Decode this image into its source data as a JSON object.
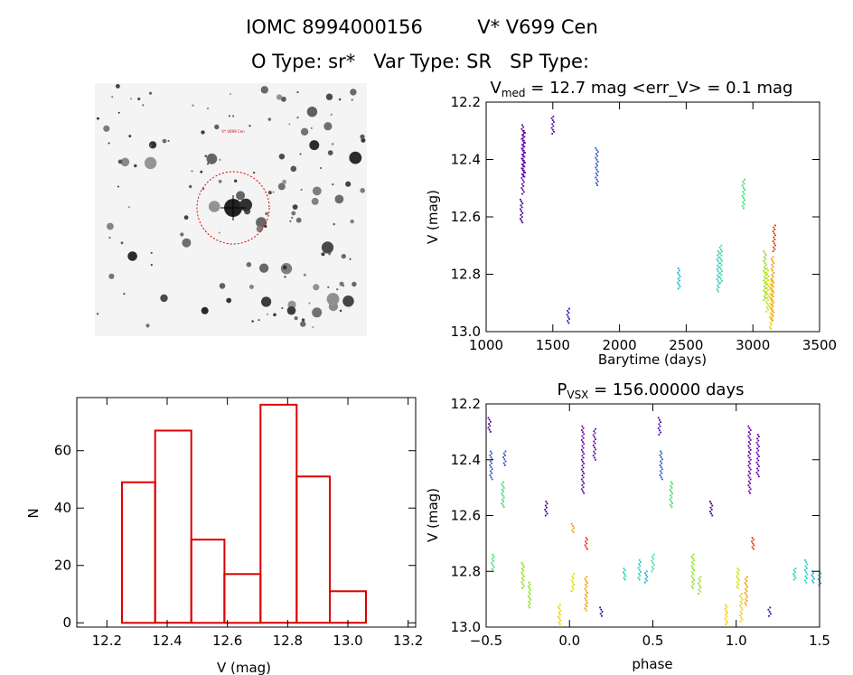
{
  "header": {
    "line1_id": "IOMC 8994000156",
    "line1_name": "V* V699 Cen",
    "line2": "O Type: sr*   Var Type: SR   SP Type:"
  },
  "colors": {
    "histogram": "#dd0000",
    "finder_circle": "#dd0000",
    "finder_bg": "#f4f4f4",
    "finder_star": "#222222"
  },
  "finder": {
    "label_top": "V* V699 Cen"
  },
  "chart_data": [
    {
      "type": "scatter",
      "id": "lightcurve",
      "title_prefix": "V",
      "title_sub": "med",
      "title_rest": " = 12.7 mag <err_V> = 0.1 mag",
      "xlabel": "Barytime (days)",
      "ylabel": "V (mag)",
      "xlim": [
        1000,
        3500
      ],
      "ylim": [
        13.0,
        12.2
      ],
      "y_inverted": true,
      "xticks": [
        1000,
        1500,
        2000,
        2500,
        3000,
        3500
      ],
      "yticks": [
        "12.2",
        "12.4",
        "12.6",
        "12.8",
        "13.0"
      ],
      "groups": [
        {
          "x": 1265,
          "ymin": 12.54,
          "ymax": 12.62,
          "color": "#440088"
        },
        {
          "x": 1275,
          "ymin": 12.28,
          "ymax": 12.52,
          "color": "#550099"
        },
        {
          "x": 1283,
          "ymin": 12.3,
          "ymax": 12.46,
          "color": "#6600aa"
        },
        {
          "x": 1500,
          "ymin": 12.25,
          "ymax": 12.31,
          "color": "#5500aa"
        },
        {
          "x": 1615,
          "ymin": 12.92,
          "ymax": 12.97,
          "color": "#3300aa"
        },
        {
          "x": 1830,
          "ymin": 12.36,
          "ymax": 12.49,
          "color": "#2255cc"
        },
        {
          "x": 2445,
          "ymin": 12.78,
          "ymax": 12.85,
          "color": "#22aacc"
        },
        {
          "x": 2740,
          "ymin": 12.72,
          "ymax": 12.86,
          "color": "#22ccbb"
        },
        {
          "x": 2760,
          "ymin": 12.7,
          "ymax": 12.83,
          "color": "#33ddaa"
        },
        {
          "x": 2930,
          "ymin": 12.47,
          "ymax": 12.57,
          "color": "#33dd66"
        },
        {
          "x": 3090,
          "ymin": 12.72,
          "ymax": 12.89,
          "color": "#88dd22"
        },
        {
          "x": 3110,
          "ymin": 12.78,
          "ymax": 12.93,
          "color": "#ccdd00"
        },
        {
          "x": 3135,
          "ymin": 12.82,
          "ymax": 12.99,
          "color": "#eecc00"
        },
        {
          "x": 3148,
          "ymin": 12.74,
          "ymax": 12.96,
          "color": "#ee9900"
        },
        {
          "x": 3160,
          "ymin": 12.63,
          "ymax": 12.72,
          "color": "#dd3300"
        }
      ]
    },
    {
      "type": "bar",
      "id": "histogram",
      "xlabel": "V (mag)",
      "ylabel": "N",
      "xlim": [
        12.1,
        13.225
      ],
      "ylim": [
        -1.5,
        78.5
      ],
      "xticks": [
        "12.2",
        "12.4",
        "12.6",
        "12.8",
        "13.0",
        "13.2"
      ],
      "yticks": [
        "0",
        "20",
        "40",
        "60"
      ],
      "bin_edges": [
        12.25,
        12.36,
        12.48,
        12.59,
        12.71,
        12.83,
        12.94,
        13.06
      ],
      "values": [
        49,
        67,
        29,
        17,
        76,
        51,
        11
      ]
    },
    {
      "type": "scatter",
      "id": "phased",
      "title_prefix": "P",
      "title_sub": "VSX",
      "title_rest": " = 156.00000 days",
      "xlabel": "phase",
      "ylabel": "V (mag)",
      "xlim": [
        -0.5,
        1.5
      ],
      "ylim": [
        13.0,
        12.2
      ],
      "y_inverted": true,
      "xticks": [
        "−0.5",
        "0.0",
        "0.5",
        "1.0",
        "1.5"
      ],
      "yticks": [
        "12.2",
        "12.4",
        "12.6",
        "12.8",
        "13.0"
      ],
      "groups": [
        {
          "x": -0.48,
          "ymin": 12.25,
          "ymax": 12.3,
          "color": "#5500aa"
        },
        {
          "x": -0.47,
          "ymin": 12.37,
          "ymax": 12.47,
          "color": "#2255cc"
        },
        {
          "x": -0.46,
          "ymin": 12.74,
          "ymax": 12.8,
          "color": "#33dd66"
        },
        {
          "x": -0.4,
          "ymin": 12.48,
          "ymax": 12.57,
          "color": "#33dd66"
        },
        {
          "x": -0.39,
          "ymin": 12.37,
          "ymax": 12.42,
          "color": "#2255cc"
        },
        {
          "x": -0.28,
          "ymin": 12.77,
          "ymax": 12.86,
          "color": "#88dd22"
        },
        {
          "x": -0.24,
          "ymin": 12.84,
          "ymax": 12.93,
          "color": "#88dd22"
        },
        {
          "x": -0.14,
          "ymin": 12.55,
          "ymax": 12.6,
          "color": "#440088"
        },
        {
          "x": -0.06,
          "ymin": 12.92,
          "ymax": 12.99,
          "color": "#eecc00"
        },
        {
          "x": 0.02,
          "ymin": 12.81,
          "ymax": 12.87,
          "color": "#ccdd00"
        },
        {
          "x": 0.02,
          "ymin": 12.63,
          "ymax": 12.66,
          "color": "#ee9900"
        },
        {
          "x": 0.08,
          "ymin": 12.28,
          "ymax": 12.52,
          "color": "#6600aa"
        },
        {
          "x": 0.1,
          "ymin": 12.68,
          "ymax": 12.72,
          "color": "#dd3300"
        },
        {
          "x": 0.1,
          "ymin": 12.82,
          "ymax": 12.94,
          "color": "#ee9900"
        },
        {
          "x": 0.15,
          "ymin": 12.29,
          "ymax": 12.4,
          "color": "#6600aa"
        },
        {
          "x": 0.19,
          "ymin": 12.93,
          "ymax": 12.96,
          "color": "#3300aa"
        },
        {
          "x": 0.33,
          "ymin": 12.79,
          "ymax": 12.83,
          "color": "#22ccbb"
        },
        {
          "x": 0.42,
          "ymin": 12.76,
          "ymax": 12.83,
          "color": "#22ccbb"
        },
        {
          "x": 0.46,
          "ymin": 12.8,
          "ymax": 12.84,
          "color": "#22aacc"
        },
        {
          "x": 0.5,
          "ymin": 12.74,
          "ymax": 12.8,
          "color": "#33ddaa"
        },
        {
          "x": 0.54,
          "ymin": 12.25,
          "ymax": 12.31,
          "color": "#5500aa"
        },
        {
          "x": 0.55,
          "ymin": 12.37,
          "ymax": 12.47,
          "color": "#2255cc"
        },
        {
          "x": 0.61,
          "ymin": 12.48,
          "ymax": 12.57,
          "color": "#33dd66"
        },
        {
          "x": 0.74,
          "ymin": 12.74,
          "ymax": 12.86,
          "color": "#88dd22"
        },
        {
          "x": 0.78,
          "ymin": 12.82,
          "ymax": 12.88,
          "color": "#88dd22"
        },
        {
          "x": 0.85,
          "ymin": 12.55,
          "ymax": 12.6,
          "color": "#440088"
        },
        {
          "x": 0.94,
          "ymin": 12.92,
          "ymax": 12.99,
          "color": "#eecc00"
        },
        {
          "x": 1.01,
          "ymin": 12.79,
          "ymax": 12.86,
          "color": "#ccdd00"
        },
        {
          "x": 1.03,
          "ymin": 12.88,
          "ymax": 12.98,
          "color": "#eecc00"
        },
        {
          "x": 1.06,
          "ymin": 12.82,
          "ymax": 12.92,
          "color": "#ee9900"
        },
        {
          "x": 1.08,
          "ymin": 12.28,
          "ymax": 12.52,
          "color": "#6600aa"
        },
        {
          "x": 1.1,
          "ymin": 12.68,
          "ymax": 12.72,
          "color": "#dd3300"
        },
        {
          "x": 1.13,
          "ymin": 12.31,
          "ymax": 12.46,
          "color": "#6600aa"
        },
        {
          "x": 1.2,
          "ymin": 12.93,
          "ymax": 12.96,
          "color": "#3300aa"
        },
        {
          "x": 1.35,
          "ymin": 12.79,
          "ymax": 12.83,
          "color": "#22ccbb"
        },
        {
          "x": 1.42,
          "ymin": 12.76,
          "ymax": 12.84,
          "color": "#22ccbb"
        },
        {
          "x": 1.46,
          "ymin": 12.8,
          "ymax": 12.84,
          "color": "#22aacc"
        },
        {
          "x": 1.5,
          "ymin": 12.8,
          "ymax": 12.85,
          "color": "#22aacc"
        }
      ]
    }
  ]
}
